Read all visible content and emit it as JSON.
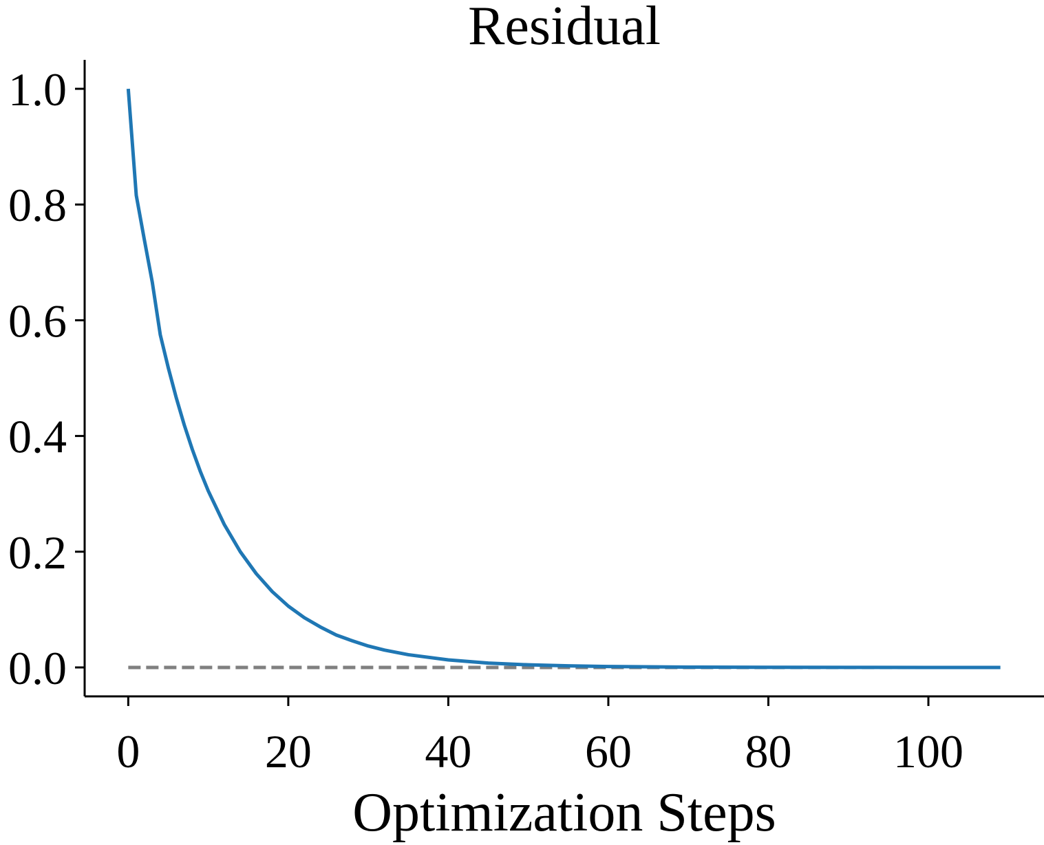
{
  "chart_data": {
    "type": "line",
    "title": "Residual",
    "xlabel": "Optimization Steps",
    "ylabel": "",
    "xlim": [
      -5.45,
      114.45
    ],
    "ylim": [
      -0.05,
      1.05
    ],
    "x_ticks": [
      0,
      20,
      40,
      60,
      80,
      100
    ],
    "x_tick_labels": [
      "0",
      "20",
      "40",
      "60",
      "80",
      "100"
    ],
    "y_ticks": [
      0.0,
      0.2,
      0.4,
      0.6,
      0.8,
      1.0
    ],
    "y_tick_labels": [
      "0.0",
      "0.2",
      "0.4",
      "0.6",
      "0.8",
      "1.0"
    ],
    "grid": false,
    "legend": "none",
    "series": [
      {
        "color": "#1f77b4",
        "line_style": "solid",
        "x": [
          0,
          1,
          2,
          3,
          4,
          5,
          6,
          7,
          8,
          9,
          10,
          12,
          14,
          16,
          18,
          20,
          22,
          24,
          26,
          28,
          30,
          32,
          35,
          40,
          45,
          50,
          55,
          60,
          70,
          80,
          90,
          100,
          109
        ],
        "y": [
          1.0,
          0.816,
          0.74,
          0.666,
          0.575,
          0.518,
          0.466,
          0.419,
          0.377,
          0.339,
          0.305,
          0.247,
          0.2,
          0.162,
          0.131,
          0.106,
          0.086,
          0.07,
          0.056,
          0.046,
          0.037,
          0.03,
          0.022,
          0.013,
          0.0075,
          0.0045,
          0.0027,
          0.0016,
          0.0006,
          0.0002,
          0.0001,
          0.0,
          0.0
        ]
      },
      {
        "color": "#808080",
        "line_style": "dashed",
        "x": [
          0,
          109
        ],
        "y": [
          0.0,
          0.0
        ]
      }
    ]
  }
}
